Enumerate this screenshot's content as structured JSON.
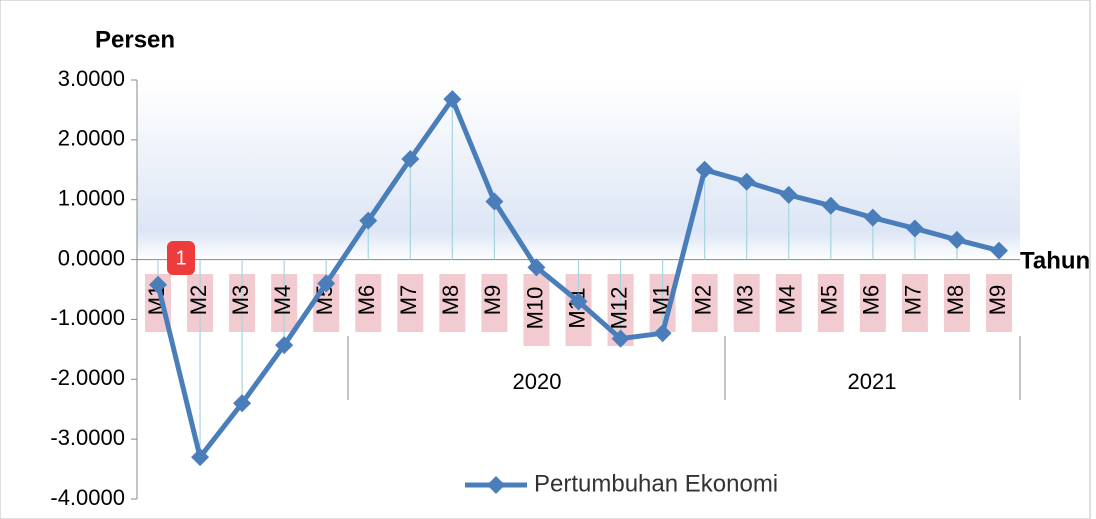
{
  "chart_data": {
    "type": "line",
    "y_label": "Persen",
    "x_label": "Tahun",
    "categories": [
      "M1",
      "M2",
      "M3",
      "M4",
      "M5",
      "M6",
      "M7",
      "M8",
      "M9",
      "M10",
      "M11",
      "M12",
      "M1",
      "M2",
      "M3",
      "M4",
      "M5",
      "M6",
      "M7",
      "M8",
      "M9"
    ],
    "x_groups": [
      "2020",
      "2021"
    ],
    "series": [
      {
        "name": "Pertumbuhan Ekonomi",
        "color": "#4a7ebb",
        "values": [
          -0.42,
          -3.3,
          -2.4,
          -1.43,
          -0.4,
          0.65,
          1.68,
          2.68,
          0.97,
          -0.13,
          -0.7,
          -1.32,
          -1.23,
          1.5,
          1.3,
          1.08,
          0.9,
          0.7,
          0.52,
          0.33,
          0.15
        ]
      }
    ],
    "ylim": [
      -4,
      3
    ],
    "yticks": [
      {
        "value": 3,
        "label": "3.0000"
      },
      {
        "value": 2,
        "label": "2.0000"
      },
      {
        "value": 1,
        "label": "1.0000"
      },
      {
        "value": 0,
        "label": "0.0000"
      },
      {
        "value": -1,
        "label": "-1.0000"
      },
      {
        "value": -2,
        "label": "-2.0000"
      },
      {
        "value": -3,
        "label": "-3.0000"
      },
      {
        "value": -4,
        "label": "-4.0000"
      }
    ],
    "drop_lines": true,
    "legend": "bottom",
    "annotation_badge": "1"
  }
}
